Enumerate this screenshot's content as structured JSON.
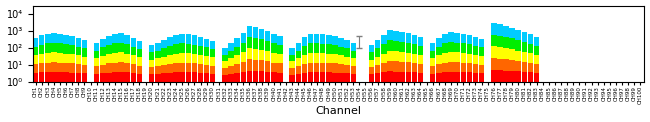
{
  "chart_data": {
    "type": "bar",
    "stacked": true,
    "log": "y",
    "grid": false,
    "xlabel": "Channel",
    "categories": [
      "CH1",
      "CH2",
      "CH3",
      "CH4",
      "CH5",
      "CH6",
      "CH7",
      "CH8",
      "CH9",
      "CH10",
      "CH11",
      "CH12",
      "CH13",
      "CH14",
      "CH15",
      "CH16",
      "CH17",
      "CH18",
      "CH19",
      "CH20",
      "CH21",
      "CH22",
      "CH23",
      "CH24",
      "CH25",
      "CH26",
      "CH27",
      "CH28",
      "CH29",
      "CH30",
      "CH31",
      "CH32",
      "CH33",
      "CH34",
      "CH35",
      "CH36",
      "CH37",
      "CH38",
      "CH39",
      "CH40",
      "CH41",
      "CH42",
      "CH43",
      "CH44",
      "CH45",
      "CH46",
      "CH47",
      "CH48",
      "CH49",
      "CH50",
      "CH51",
      "CH52",
      "CH53",
      "CH54",
      "CH55",
      "CH56",
      "CH57",
      "CH58",
      "CH59",
      "CH60",
      "CH61",
      "CH62",
      "CH63",
      "CH64",
      "CH65",
      "CH66",
      "CH67",
      "CH68",
      "CH69",
      "CH70",
      "CH71",
      "CH72",
      "CH73",
      "CH74",
      "CH75",
      "CH76",
      "CH77",
      "CH78",
      "CH79",
      "CH80",
      "CH81",
      "CH82",
      "CH83",
      "CH84",
      "CH85",
      "CH86",
      "CH87",
      "CH88",
      "CH89",
      "CH90",
      "CH91",
      "CH92",
      "CH93",
      "CH94",
      "CH95",
      "CH96",
      "CH97",
      "CH98",
      "CH99",
      "CH100"
    ],
    "series": [
      {
        "color": "#ff0000",
        "values": [
          2.31,
          2.53,
          2.71,
          2.81,
          2.71,
          2.59,
          2.47,
          2.31,
          2.13,
          null,
          1.89,
          2.23,
          2.47,
          2.71,
          2.81,
          2.59,
          2.31,
          2.02,
          null,
          1.72,
          1.89,
          2.13,
          2.39,
          2.59,
          2.71,
          2.65,
          2.53,
          2.39,
          2.23,
          2.02,
          null,
          1.51,
          1.89,
          2.31,
          2.81,
          3.57,
          3.48,
          3.26,
          2.98,
          2.71,
          2.47,
          null,
          1.51,
          1.89,
          2.39,
          2.71,
          2.71,
          2.65,
          2.59,
          2.47,
          2.31,
          2.13,
          1.89,
          null,
          null,
          1.72,
          2.13,
          2.59,
          3.13,
          2.98,
          2.9,
          2.76,
          2.59,
          2.39,
          null,
          1.89,
          2.31,
          2.71,
          2.9,
          2.81,
          2.71,
          2.59,
          2.39,
          2.23,
          null,
          3.96,
          3.78,
          3.57,
          3.37,
          3.13,
          2.9,
          2.65,
          2.39,
          null,
          null,
          null,
          null,
          null,
          null,
          null,
          null,
          null,
          null,
          null,
          null,
          null,
          null,
          null,
          null,
          null
        ]
      },
      {
        "color": "#ff6600",
        "values": [
          7.67,
          8.95,
          10.03,
          10.69,
          10.03,
          9.34,
          8.55,
          7.67,
          6.66,
          null,
          5.44,
          7.19,
          8.55,
          10.03,
          10.69,
          9.34,
          7.67,
          6.09,
          null,
          4.7,
          5.44,
          6.66,
          8.12,
          9.34,
          10.03,
          9.69,
          8.95,
          8.12,
          7.19,
          6.09,
          null,
          3.8,
          5.44,
          7.67,
          10.69,
          16.34,
          15.57,
          13.87,
          11.87,
          10.03,
          8.55,
          null,
          3.8,
          5.44,
          8.12,
          10.03,
          10.03,
          9.69,
          9.34,
          8.55,
          7.67,
          6.66,
          5.44,
          null,
          null,
          4.7,
          6.66,
          9.34,
          12.92,
          11.87,
          11.3,
          10.37,
          9.34,
          8.12,
          null,
          5.44,
          7.67,
          10.03,
          11.3,
          10.69,
          10.03,
          9.34,
          8.12,
          7.19,
          null,
          19.64,
          18.08,
          16.34,
          14.75,
          12.92,
          11.3,
          9.69,
          8.12,
          null,
          null,
          null,
          null,
          null,
          null,
          null,
          null,
          null,
          null,
          null,
          null,
          null,
          null,
          null,
          null,
          null
        ]
      },
      {
        "color": "#ffff00",
        "values": [
          25.43,
          31.6,
          37.2,
          40.69,
          37.2,
          33.55,
          29.62,
          25.43,
          20.85,
          null,
          15.7,
          23.19,
          29.62,
          37.2,
          40.69,
          33.55,
          25.43,
          18.36,
          null,
          12.79,
          15.7,
          20.85,
          27.56,
          33.55,
          37.2,
          35.38,
          31.6,
          27.56,
          23.19,
          18.36,
          null,
          9.54,
          15.7,
          25.43,
          40.69,
          74.72,
          69.73,
          59.08,
          47.25,
          37.2,
          29.62,
          null,
          9.54,
          15.7,
          27.56,
          37.2,
          37.2,
          35.38,
          33.55,
          29.62,
          25.43,
          20.85,
          15.7,
          null,
          null,
          12.79,
          20.85,
          33.55,
          53.34,
          47.25,
          44.04,
          38.97,
          33.55,
          27.56,
          null,
          15.7,
          25.43,
          37.2,
          44.04,
          40.69,
          37.2,
          33.55,
          27.56,
          23.19,
          null,
          97.38,
          86.47,
          74.72,
          64.52,
          53.34,
          44.04,
          35.38,
          27.56,
          null,
          null,
          null,
          null,
          null,
          null,
          null,
          null,
          null,
          null,
          null,
          null,
          null,
          null,
          null,
          null,
          null
        ]
      },
      {
        "color": "#00ee00",
        "values": [
          84.27,
          111.62,
          137.89,
          154.93,
          137.89,
          120.58,
          102.64,
          84.27,
          65.24,
          null,
          45.29,
          74.85,
          102.64,
          137.89,
          154.93,
          120.58,
          84.27,
          55.4,
          null,
          34.85,
          45.29,
          65.24,
          93.53,
          120.58,
          137.89,
          129.24,
          111.62,
          93.53,
          74.85,
          55.4,
          null,
          23.96,
          45.29,
          84.27,
          154.93,
          341.71,
          312.22,
          251.57,
          188.09,
          137.89,
          102.64,
          null,
          23.96,
          45.29,
          93.53,
          137.89,
          137.89,
          129.24,
          120.58,
          102.64,
          84.27,
          65.24,
          45.29,
          null,
          null,
          34.85,
          65.24,
          120.58,
          220.24,
          188.09,
          171.65,
          146.46,
          120.58,
          93.53,
          null,
          45.29,
          84.27,
          137.89,
          171.65,
          154.93,
          137.89,
          120.58,
          93.53,
          74.85,
          null,
          482.94,
          413.48,
          341.71,
          282.19,
          220.24,
          171.65,
          129.24,
          93.53,
          null,
          null,
          null,
          null,
          null,
          null,
          null,
          null,
          null,
          null,
          null,
          null,
          null,
          null,
          null,
          null,
          null
        ]
      },
      {
        "color": "#00ccff",
        "values": [
          279.32,
          394.3,
          511.17,
          589.88,
          511.17,
          432.95,
          355.73,
          279.32,
          204.13,
          null,
          130.69,
          241.54,
          355.73,
          511.17,
          589.88,
          432.95,
          279.32,
          167.14,
          null,
          94.94,
          130.69,
          204.13,
          317.39,
          432.95,
          511.17,
          472.04,
          394.3,
          317.39,
          241.54,
          167.14,
          null,
          60.19,
          130.69,
          279.32,
          589.88,
          1562.66,
          1398.01,
          1071.22,
          748.81,
          511.17,
          355.73,
          null,
          60.19,
          130.69,
          317.39,
          511.17,
          511.17,
          472.04,
          432.95,
          355.73,
          279.32,
          204.13,
          130.69,
          null,
          null,
          94.94,
          204.13,
          432.95,
          909.37,
          748.81,
          669.12,
          550.45,
          432.95,
          317.39,
          null,
          130.69,
          279.32,
          511.17,
          669.12,
          589.88,
          511.17,
          432.95,
          317.39,
          241.54,
          null,
          2395.08,
          1977.18,
          1562.66,
          1234.16,
          909.37,
          669.12,
          472.04,
          317.39,
          null,
          null,
          null,
          null,
          null,
          null,
          null,
          null,
          null,
          null,
          null,
          null,
          null,
          null,
          null,
          null,
          null
        ]
      }
    ],
    "error_bars": [
      {
        "category": "CH54",
        "value": 300,
        "error": 200,
        "color": "#7f7f7f"
      }
    ],
    "ylim": [
      1,
      30000
    ],
    "yticks": [
      {
        "value": 1,
        "label": "10⁰"
      },
      {
        "value": 10,
        "label": "10¹"
      },
      {
        "value": 100,
        "label": "10²"
      },
      {
        "value": 1000,
        "label": "10³"
      },
      {
        "value": 10000,
        "label": "10⁴"
      }
    ]
  }
}
